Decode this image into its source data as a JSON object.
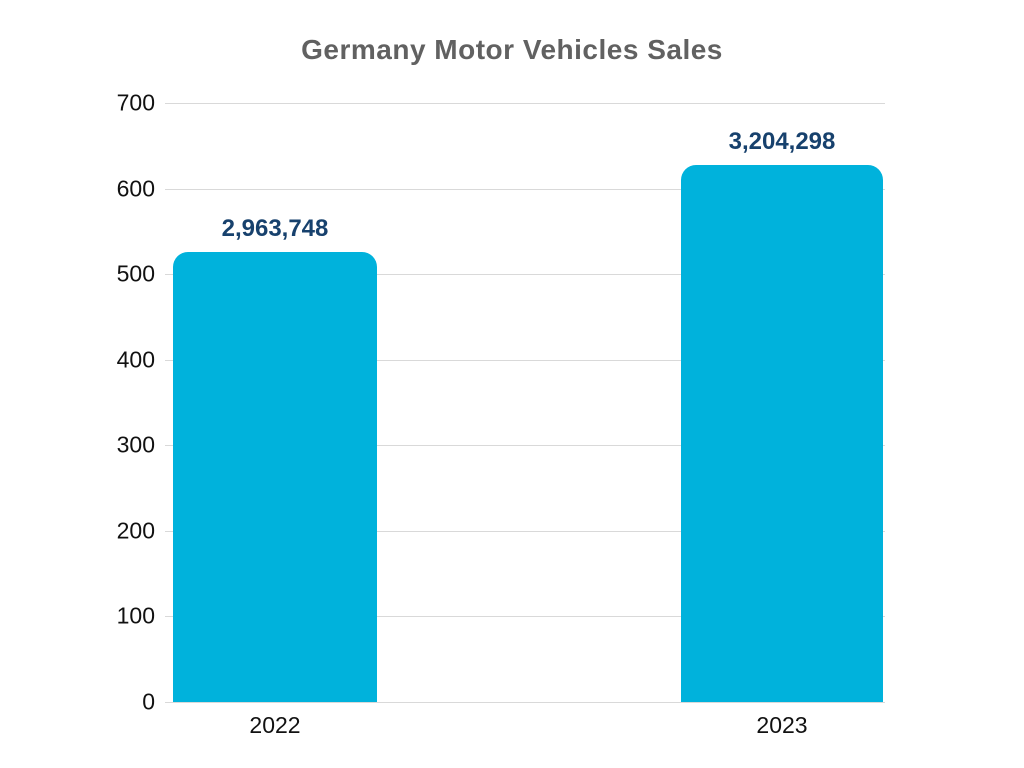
{
  "title": "Germany Motor Vehicles Sales",
  "chart_data": {
    "type": "bar",
    "title": "Germany Motor Vehicles Sales",
    "categories": [
      "2022",
      "2023"
    ],
    "values": [
      2963748,
      3204298
    ],
    "value_labels": [
      "2,963,748",
      "3,204,298"
    ],
    "display_axis_values": [
      526,
      627
    ],
    "yticks": [
      0,
      100,
      200,
      300,
      400,
      500,
      600,
      700
    ],
    "ylim": [
      0,
      700
    ],
    "xlabel": "",
    "ylabel": "",
    "grid": "horizontal-only",
    "legend": "none",
    "colors": {
      "bar": "#00b2dc",
      "value_label": "#17416d",
      "title": "#616161",
      "axis_text": "#111111",
      "gridline": "#d9d9d9",
      "background": "#ffffff"
    }
  }
}
